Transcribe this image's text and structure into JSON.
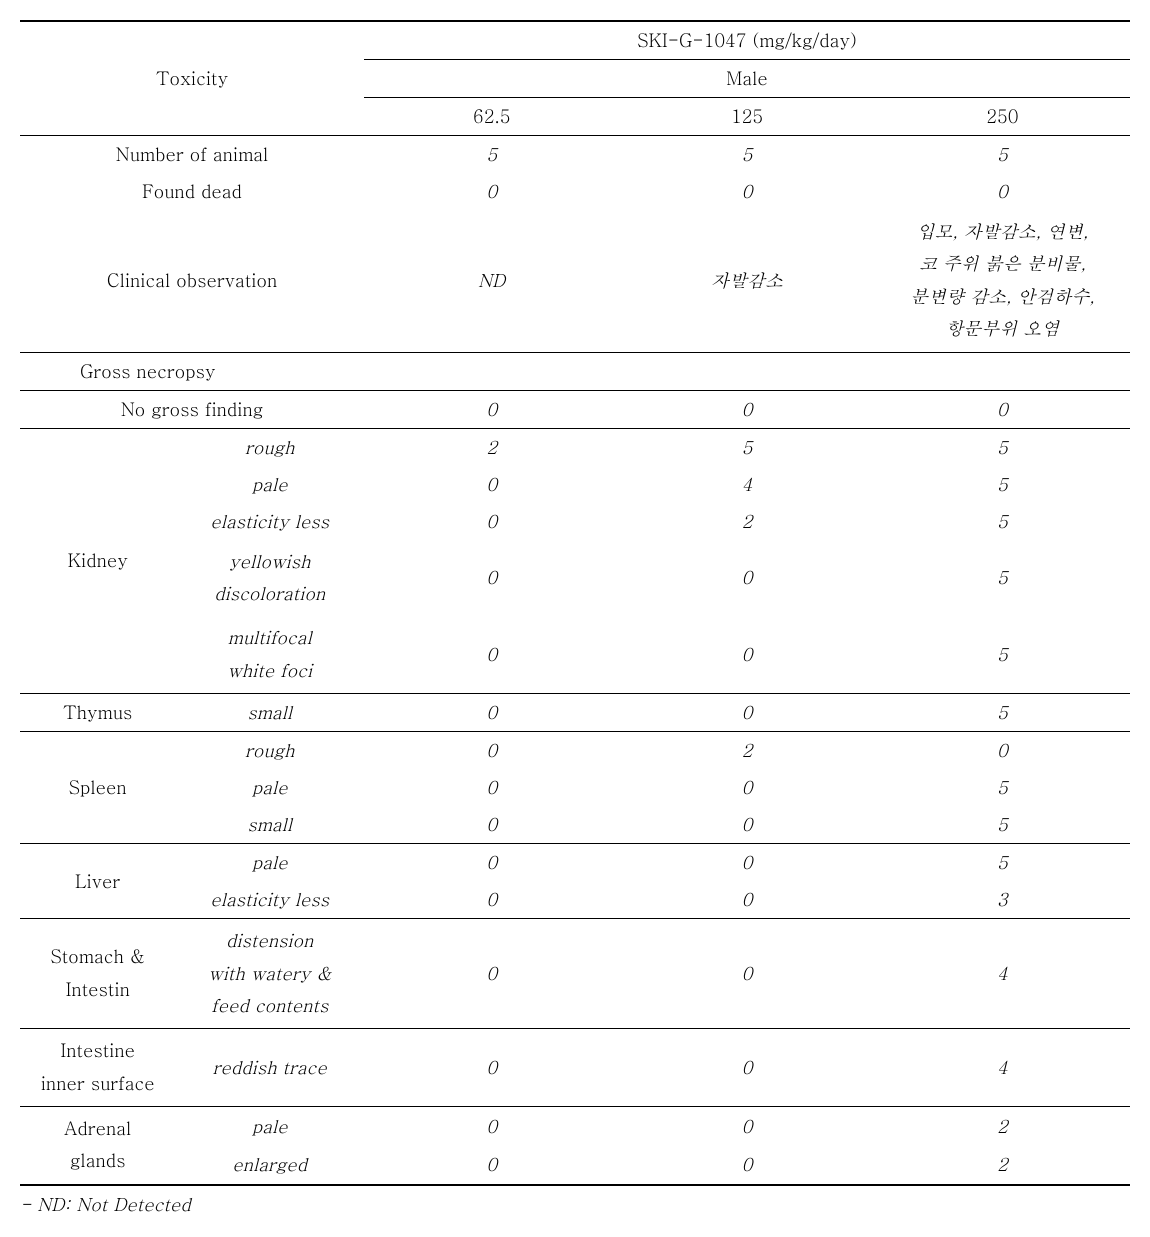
{
  "header": {
    "toxicity": "Toxicity",
    "compound": "SKI-G-1047 (mg/kg/day)",
    "sex": "Male",
    "doses": [
      "62.5",
      "125",
      "250"
    ]
  },
  "rows": {
    "num_animal": {
      "label": "Number of animal",
      "v": [
        "5",
        "5",
        "5"
      ]
    },
    "found_dead": {
      "label": "Found dead",
      "v": [
        "0",
        "0",
        "0"
      ]
    },
    "clinical": {
      "label": "Clinical observation",
      "v": [
        "ND",
        "자발감소",
        "입모, 자발감소, 연변,\n코 주위 붉은 분비물,\n분변량 감소, 안검하수,\n항문부위 오염"
      ]
    },
    "gross_necropsy": "Gross necropsy",
    "no_gross": {
      "label": "No gross finding",
      "v": [
        "0",
        "0",
        "0"
      ]
    },
    "kidney": {
      "label": "Kidney",
      "findings": [
        {
          "f": "rough",
          "v": [
            "2",
            "5",
            "5"
          ]
        },
        {
          "f": "pale",
          "v": [
            "0",
            "4",
            "5"
          ]
        },
        {
          "f": "elasticity less",
          "v": [
            "0",
            "2",
            "5"
          ]
        },
        {
          "f": "yellowish\ndiscoloration",
          "v": [
            "0",
            "0",
            "5"
          ]
        },
        {
          "f": "multifocal\nwhite foci",
          "v": [
            "0",
            "0",
            "5"
          ]
        }
      ]
    },
    "thymus": {
      "label": "Thymus",
      "findings": [
        {
          "f": "small",
          "v": [
            "0",
            "0",
            "5"
          ]
        }
      ]
    },
    "spleen": {
      "label": "Spleen",
      "findings": [
        {
          "f": "rough",
          "v": [
            "0",
            "2",
            "0"
          ]
        },
        {
          "f": "pale",
          "v": [
            "0",
            "0",
            "5"
          ]
        },
        {
          "f": "small",
          "v": [
            "0",
            "0",
            "5"
          ]
        }
      ]
    },
    "liver": {
      "label": "Liver",
      "findings": [
        {
          "f": "pale",
          "v": [
            "0",
            "0",
            "5"
          ]
        },
        {
          "f": "elasticity less",
          "v": [
            "0",
            "0",
            "3"
          ]
        }
      ]
    },
    "stomach": {
      "label": "Stomach &\nIntestin",
      "findings": [
        {
          "f": "distension\nwith watery &\nfeed contents",
          "v": [
            "0",
            "0",
            "4"
          ]
        }
      ]
    },
    "intestine_inner": {
      "label": "Intestine\ninner surface",
      "findings": [
        {
          "f": "reddish trace",
          "v": [
            "0",
            "0",
            "4"
          ]
        }
      ]
    },
    "adrenal": {
      "label": "Adrenal\nglands",
      "findings": [
        {
          "f": "pale",
          "v": [
            "0",
            "0",
            "2"
          ]
        },
        {
          "f": "enlarged",
          "v": [
            "0",
            "0",
            "2"
          ]
        }
      ]
    }
  },
  "footnote": "- ND: Not Detected"
}
